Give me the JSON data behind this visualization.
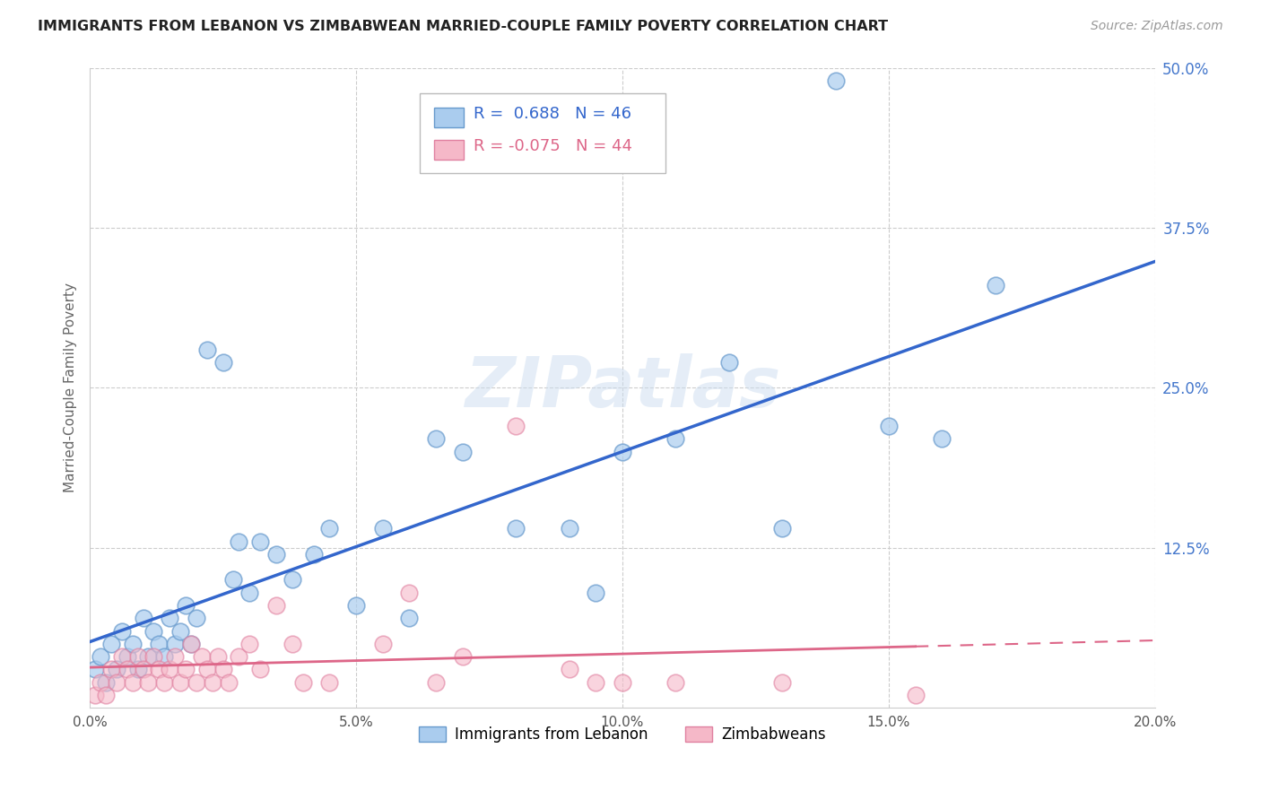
{
  "title": "IMMIGRANTS FROM LEBANON VS ZIMBABWEAN MARRIED-COUPLE FAMILY POVERTY CORRELATION CHART",
  "source": "Source: ZipAtlas.com",
  "ylabel": "Married-Couple Family Poverty",
  "xlim": [
    0,
    0.2
  ],
  "ylim": [
    0,
    0.5
  ],
  "xticks": [
    0.0,
    0.05,
    0.1,
    0.15,
    0.2
  ],
  "xtick_labels": [
    "0.0%",
    "5.0%",
    "10.0%",
    "15.0%",
    "20.0%"
  ],
  "yticks": [
    0.0,
    0.125,
    0.25,
    0.375,
    0.5
  ],
  "ytick_labels": [
    "",
    "12.5%",
    "25.0%",
    "37.5%",
    "50.0%"
  ],
  "blue_R": 0.688,
  "blue_N": 46,
  "pink_R": -0.075,
  "pink_N": 44,
  "blue_color": "#aaccee",
  "pink_color": "#f5b8c8",
  "blue_edge_color": "#6699cc",
  "pink_edge_color": "#e080a0",
  "blue_line_color": "#3366cc",
  "pink_line_color": "#dd6688",
  "ytick_color": "#4477cc",
  "legend_label_blue": "Immigrants from Lebanon",
  "legend_label_pink": "Zimbabweans",
  "watermark": "ZIPatlas",
  "blue_scatter_x": [
    0.001,
    0.002,
    0.003,
    0.004,
    0.005,
    0.006,
    0.007,
    0.008,
    0.009,
    0.01,
    0.011,
    0.012,
    0.013,
    0.014,
    0.015,
    0.016,
    0.017,
    0.018,
    0.019,
    0.02,
    0.022,
    0.025,
    0.027,
    0.028,
    0.03,
    0.032,
    0.035,
    0.038,
    0.042,
    0.045,
    0.05,
    0.055,
    0.06,
    0.065,
    0.07,
    0.08,
    0.09,
    0.095,
    0.1,
    0.11,
    0.12,
    0.13,
    0.14,
    0.15,
    0.16,
    0.17
  ],
  "blue_scatter_y": [
    0.03,
    0.04,
    0.02,
    0.05,
    0.03,
    0.06,
    0.04,
    0.05,
    0.03,
    0.07,
    0.04,
    0.06,
    0.05,
    0.04,
    0.07,
    0.05,
    0.06,
    0.08,
    0.05,
    0.07,
    0.28,
    0.27,
    0.1,
    0.13,
    0.09,
    0.13,
    0.12,
    0.1,
    0.12,
    0.14,
    0.08,
    0.14,
    0.07,
    0.21,
    0.2,
    0.14,
    0.14,
    0.09,
    0.2,
    0.21,
    0.27,
    0.14,
    0.49,
    0.22,
    0.21,
    0.33
  ],
  "pink_scatter_x": [
    0.001,
    0.002,
    0.003,
    0.004,
    0.005,
    0.006,
    0.007,
    0.008,
    0.009,
    0.01,
    0.011,
    0.012,
    0.013,
    0.014,
    0.015,
    0.016,
    0.017,
    0.018,
    0.019,
    0.02,
    0.021,
    0.022,
    0.023,
    0.024,
    0.025,
    0.026,
    0.028,
    0.03,
    0.032,
    0.035,
    0.038,
    0.04,
    0.045,
    0.055,
    0.06,
    0.065,
    0.07,
    0.08,
    0.09,
    0.095,
    0.1,
    0.11,
    0.13,
    0.155
  ],
  "pink_scatter_y": [
    0.01,
    0.02,
    0.01,
    0.03,
    0.02,
    0.04,
    0.03,
    0.02,
    0.04,
    0.03,
    0.02,
    0.04,
    0.03,
    0.02,
    0.03,
    0.04,
    0.02,
    0.03,
    0.05,
    0.02,
    0.04,
    0.03,
    0.02,
    0.04,
    0.03,
    0.02,
    0.04,
    0.05,
    0.03,
    0.08,
    0.05,
    0.02,
    0.02,
    0.05,
    0.09,
    0.02,
    0.04,
    0.22,
    0.03,
    0.02,
    0.02,
    0.02,
    0.02,
    0.01
  ]
}
